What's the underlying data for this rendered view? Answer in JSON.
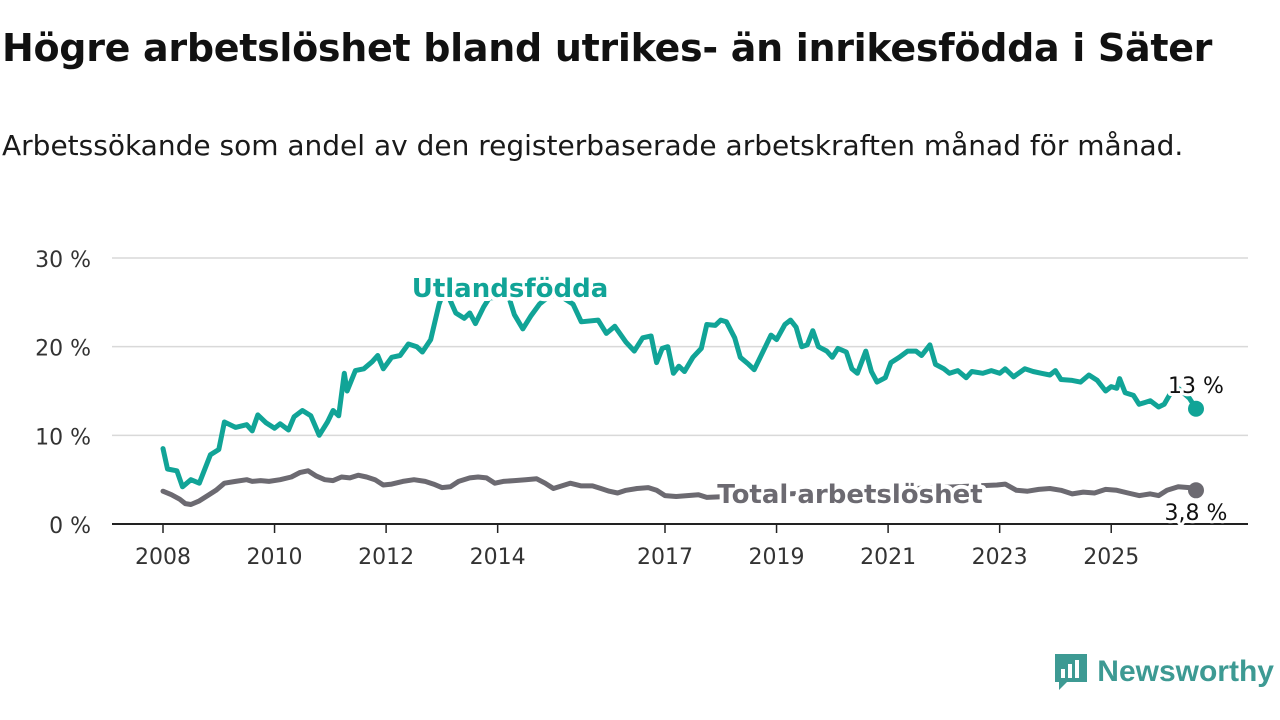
{
  "title": "Högre arbetslöshet bland utrikes- än inrikesfödda i Säter",
  "subtitle": "Arbetssökande som andel av den registerbaserade arbetskraften månad för månad.",
  "brand": "Newsworthy",
  "colors": {
    "foreign": "#11a497",
    "total": "#6c6a71",
    "grid": "#d9d9d9",
    "axis": "#222222"
  },
  "chart_data": {
    "type": "line",
    "ylim": [
      0,
      30
    ],
    "yticks": [
      {
        "v": 0,
        "label": "0 %"
      },
      {
        "v": 10,
        "label": "10 %"
      },
      {
        "v": 20,
        "label": "20 %"
      },
      {
        "v": 30,
        "label": "30 %"
      }
    ],
    "xticks": [
      {
        "v": 2008,
        "label": "2008"
      },
      {
        "v": 2010,
        "label": "2010"
      },
      {
        "v": 2012,
        "label": "2012"
      },
      {
        "v": 2014,
        "label": "2014"
      },
      {
        "v": 2017,
        "label": "2017"
      },
      {
        "v": 2019,
        "label": "2019"
      },
      {
        "v": 2021,
        "label": "2021"
      },
      {
        "v": 2023,
        "label": "2023"
      },
      {
        "v": 2025,
        "label": "2025"
      }
    ],
    "series": [
      {
        "name": "Utlandsfödda",
        "color": "#11a497",
        "end_label": "13 %",
        "points": [
          [
            2008.0,
            8.5
          ],
          [
            2008.08,
            6.2
          ],
          [
            2008.25,
            6.0
          ],
          [
            2008.35,
            4.2
          ],
          [
            2008.5,
            5.0
          ],
          [
            2008.65,
            4.6
          ],
          [
            2008.85,
            7.8
          ],
          [
            2009.0,
            8.4
          ],
          [
            2009.1,
            11.5
          ],
          [
            2009.3,
            10.9
          ],
          [
            2009.5,
            11.2
          ],
          [
            2009.6,
            10.5
          ],
          [
            2009.7,
            12.3
          ],
          [
            2009.85,
            11.4
          ],
          [
            2010.0,
            10.8
          ],
          [
            2010.1,
            11.3
          ],
          [
            2010.25,
            10.6
          ],
          [
            2010.35,
            12.1
          ],
          [
            2010.5,
            12.8
          ],
          [
            2010.65,
            12.2
          ],
          [
            2010.8,
            10.0
          ],
          [
            2010.95,
            11.5
          ],
          [
            2011.05,
            12.8
          ],
          [
            2011.15,
            12.2
          ],
          [
            2011.25,
            17.0
          ],
          [
            2011.3,
            15.0
          ],
          [
            2011.45,
            17.3
          ],
          [
            2011.6,
            17.5
          ],
          [
            2011.75,
            18.3
          ],
          [
            2011.85,
            19.0
          ],
          [
            2011.95,
            17.5
          ],
          [
            2012.1,
            18.8
          ],
          [
            2012.25,
            19.0
          ],
          [
            2012.4,
            20.3
          ],
          [
            2012.55,
            20.0
          ],
          [
            2012.65,
            19.4
          ],
          [
            2012.8,
            20.8
          ],
          [
            2012.95,
            24.8
          ],
          [
            2013.05,
            26.5
          ],
          [
            2013.15,
            25.2
          ],
          [
            2013.25,
            23.8
          ],
          [
            2013.4,
            23.2
          ],
          [
            2013.5,
            23.8
          ],
          [
            2013.6,
            22.6
          ],
          [
            2013.75,
            24.5
          ],
          [
            2013.85,
            25.5
          ],
          [
            2014.2,
            25.6
          ],
          [
            2014.3,
            23.6
          ],
          [
            2014.45,
            22.0
          ],
          [
            2014.6,
            23.5
          ],
          [
            2014.75,
            24.8
          ],
          [
            2014.95,
            25.8
          ],
          [
            2015.15,
            25.6
          ],
          [
            2015.35,
            24.8
          ],
          [
            2015.5,
            22.8
          ],
          [
            2015.8,
            23.0
          ],
          [
            2015.95,
            21.5
          ],
          [
            2016.1,
            22.3
          ],
          [
            2016.3,
            20.5
          ],
          [
            2016.45,
            19.5
          ],
          [
            2016.6,
            21.0
          ],
          [
            2016.75,
            21.2
          ],
          [
            2016.85,
            18.2
          ],
          [
            2016.95,
            19.8
          ],
          [
            2017.05,
            20.0
          ],
          [
            2017.15,
            17.0
          ],
          [
            2017.25,
            17.8
          ],
          [
            2017.35,
            17.2
          ],
          [
            2017.5,
            18.8
          ],
          [
            2017.65,
            19.8
          ],
          [
            2017.75,
            22.5
          ],
          [
            2017.9,
            22.4
          ],
          [
            2018.0,
            23.0
          ],
          [
            2018.1,
            22.8
          ],
          [
            2018.25,
            21.0
          ],
          [
            2018.35,
            18.8
          ],
          [
            2018.5,
            18.0
          ],
          [
            2018.6,
            17.4
          ],
          [
            2018.8,
            20.0
          ],
          [
            2018.9,
            21.3
          ],
          [
            2019.0,
            20.8
          ],
          [
            2019.15,
            22.5
          ],
          [
            2019.25,
            23.0
          ],
          [
            2019.35,
            22.2
          ],
          [
            2019.45,
            20.0
          ],
          [
            2019.55,
            20.2
          ],
          [
            2019.65,
            21.8
          ],
          [
            2019.75,
            20.0
          ],
          [
            2019.9,
            19.5
          ],
          [
            2020.0,
            18.8
          ],
          [
            2020.1,
            19.8
          ],
          [
            2020.25,
            19.4
          ],
          [
            2020.35,
            17.5
          ],
          [
            2020.45,
            17.0
          ],
          [
            2020.6,
            19.5
          ],
          [
            2020.7,
            17.2
          ],
          [
            2020.8,
            16.0
          ],
          [
            2020.95,
            16.5
          ],
          [
            2021.05,
            18.2
          ],
          [
            2021.2,
            18.8
          ],
          [
            2021.35,
            19.5
          ],
          [
            2021.5,
            19.5
          ],
          [
            2021.6,
            19.0
          ],
          [
            2021.75,
            20.2
          ],
          [
            2021.85,
            18.0
          ],
          [
            2022.0,
            17.5
          ],
          [
            2022.1,
            17.0
          ],
          [
            2022.25,
            17.3
          ],
          [
            2022.4,
            16.5
          ],
          [
            2022.5,
            17.2
          ],
          [
            2022.7,
            17.0
          ],
          [
            2022.85,
            17.3
          ],
          [
            2023.0,
            17.0
          ],
          [
            2023.1,
            17.5
          ],
          [
            2023.25,
            16.6
          ],
          [
            2023.45,
            17.5
          ],
          [
            2023.6,
            17.2
          ],
          [
            2023.75,
            17.0
          ],
          [
            2023.9,
            16.8
          ],
          [
            2024.0,
            17.3
          ],
          [
            2024.1,
            16.3
          ],
          [
            2024.3,
            16.2
          ],
          [
            2024.45,
            16.0
          ],
          [
            2024.6,
            16.8
          ],
          [
            2024.75,
            16.2
          ],
          [
            2024.9,
            15.0
          ],
          [
            2025.0,
            15.5
          ],
          [
            2025.1,
            15.3
          ],
          [
            2025.15,
            16.4
          ],
          [
            2025.25,
            14.8
          ],
          [
            2025.4,
            14.5
          ],
          [
            2025.5,
            13.5
          ],
          [
            2025.7,
            13.9
          ],
          [
            2025.85,
            13.2
          ],
          [
            2025.95,
            13.5
          ],
          [
            2026.05,
            14.6
          ],
          [
            2026.2,
            15.3
          ],
          [
            2026.4,
            14.2
          ],
          [
            2026.52,
            13.0
          ]
        ]
      },
      {
        "name": "Total arbetslöshet",
        "color": "#6c6a71",
        "end_label": "3,8 %",
        "points": [
          [
            2008.0,
            3.7
          ],
          [
            2008.15,
            3.3
          ],
          [
            2008.3,
            2.8
          ],
          [
            2008.4,
            2.3
          ],
          [
            2008.5,
            2.2
          ],
          [
            2008.65,
            2.6
          ],
          [
            2008.8,
            3.2
          ],
          [
            2008.95,
            3.8
          ],
          [
            2009.1,
            4.6
          ],
          [
            2009.3,
            4.8
          ],
          [
            2009.5,
            5.0
          ],
          [
            2009.6,
            4.8
          ],
          [
            2009.75,
            4.9
          ],
          [
            2009.9,
            4.8
          ],
          [
            2010.1,
            5.0
          ],
          [
            2010.3,
            5.3
          ],
          [
            2010.45,
            5.8
          ],
          [
            2010.6,
            6.0
          ],
          [
            2010.75,
            5.4
          ],
          [
            2010.9,
            5.0
          ],
          [
            2011.05,
            4.9
          ],
          [
            2011.2,
            5.3
          ],
          [
            2011.35,
            5.2
          ],
          [
            2011.5,
            5.5
          ],
          [
            2011.65,
            5.3
          ],
          [
            2011.8,
            5.0
          ],
          [
            2011.95,
            4.4
          ],
          [
            2012.1,
            4.5
          ],
          [
            2012.3,
            4.8
          ],
          [
            2012.5,
            5.0
          ],
          [
            2012.7,
            4.8
          ],
          [
            2012.85,
            4.5
          ],
          [
            2013.0,
            4.1
          ],
          [
            2013.15,
            4.2
          ],
          [
            2013.3,
            4.8
          ],
          [
            2013.5,
            5.2
          ],
          [
            2013.65,
            5.3
          ],
          [
            2013.8,
            5.2
          ],
          [
            2013.95,
            4.6
          ],
          [
            2014.1,
            4.8
          ],
          [
            2014.3,
            4.9
          ],
          [
            2014.5,
            5.0
          ],
          [
            2014.7,
            5.1
          ],
          [
            2014.85,
            4.6
          ],
          [
            2015.0,
            4.0
          ],
          [
            2015.15,
            4.3
          ],
          [
            2015.3,
            4.6
          ],
          [
            2015.5,
            4.3
          ],
          [
            2015.7,
            4.3
          ],
          [
            2015.85,
            4.0
          ],
          [
            2016.0,
            3.7
          ],
          [
            2016.15,
            3.5
          ],
          [
            2016.3,
            3.8
          ],
          [
            2016.5,
            4.0
          ],
          [
            2016.7,
            4.1
          ],
          [
            2016.85,
            3.8
          ],
          [
            2017.0,
            3.2
          ],
          [
            2017.2,
            3.1
          ],
          [
            2017.4,
            3.2
          ],
          [
            2017.6,
            3.3
          ],
          [
            2017.75,
            3.0
          ],
          [
            2022.95,
            4.4
          ],
          [
            2023.1,
            4.5
          ],
          [
            2023.3,
            3.8
          ],
          [
            2023.5,
            3.7
          ],
          [
            2023.7,
            3.9
          ],
          [
            2023.9,
            4.0
          ],
          [
            2024.1,
            3.8
          ],
          [
            2024.3,
            3.4
          ],
          [
            2024.5,
            3.6
          ],
          [
            2024.7,
            3.5
          ],
          [
            2024.9,
            3.9
          ],
          [
            2025.1,
            3.8
          ],
          [
            2025.3,
            3.5
          ],
          [
            2025.5,
            3.2
          ],
          [
            2025.7,
            3.4
          ],
          [
            2025.85,
            3.2
          ],
          [
            2026.0,
            3.8
          ],
          [
            2026.2,
            4.2
          ],
          [
            2026.4,
            4.1
          ],
          [
            2026.52,
            3.8
          ]
        ]
      }
    ]
  }
}
